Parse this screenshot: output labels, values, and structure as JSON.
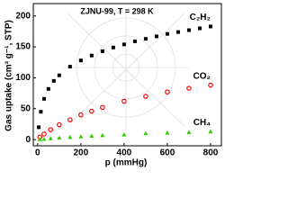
{
  "chart_data": {
    "type": "scatter",
    "annotation": "ZJNU-99, T = 298 K",
    "xlabel": "p (mmHg)",
    "ylabel": "Gas uptake (cm³ g⁻¹, STP)",
    "xlim": [
      -20,
      850
    ],
    "ylim": [
      -10,
      220
    ],
    "xticks": [
      0,
      200,
      400,
      600,
      800
    ],
    "yticks": [
      0,
      50,
      100,
      150,
      200
    ],
    "series": [
      {
        "name": "C₂H₂",
        "color": "#000000",
        "marker": "square",
        "x": [
          5,
          15,
          30,
          50,
          75,
          100,
          150,
          200,
          250,
          300,
          350,
          400,
          450,
          500,
          550,
          600,
          650,
          700,
          750,
          800
        ],
        "values": [
          20,
          45,
          66,
          82,
          95,
          104,
          118,
          128,
          136,
          143,
          149,
          154,
          159,
          163,
          167,
          171,
          174,
          177,
          180,
          183
        ]
      },
      {
        "name": "CO₂",
        "color": "#ff0000",
        "marker": "circle",
        "x": [
          10,
          30,
          60,
          100,
          150,
          200,
          250,
          300,
          400,
          500,
          600,
          700,
          800
        ],
        "values": [
          4,
          9,
          16,
          24,
          32,
          40,
          46,
          52,
          62,
          70,
          77,
          83,
          88
        ]
      },
      {
        "name": "CH₄",
        "color": "#33cc00",
        "marker": "triangle",
        "x": [
          10,
          30,
          60,
          100,
          150,
          200,
          250,
          300,
          400,
          500,
          600,
          700,
          800
        ],
        "values": [
          0.5,
          1,
          2,
          3,
          4,
          5,
          6,
          7,
          8,
          10,
          11,
          12,
          13
        ]
      }
    ]
  }
}
